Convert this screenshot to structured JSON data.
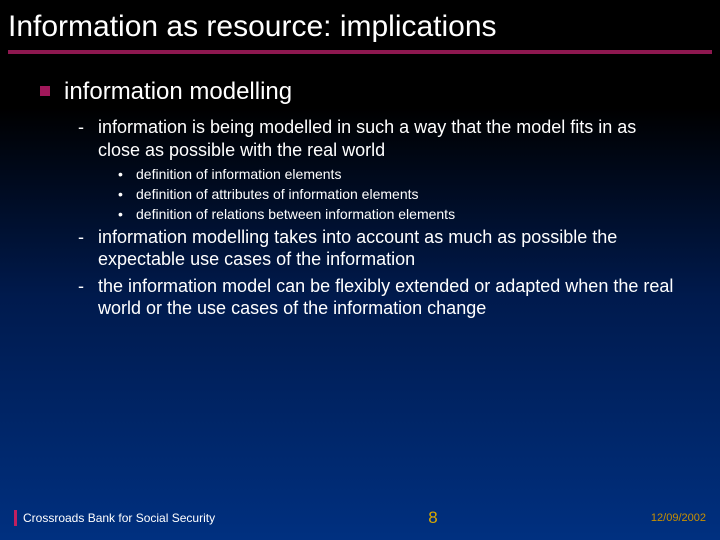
{
  "colors": {
    "accent": "#a0185a",
    "divider": "#8e1850",
    "pageNumber": "#d8a800",
    "date": "#c89000",
    "footerBar": "#c02060",
    "background_top": "#000000",
    "background_bottom": "#003080",
    "text": "#ffffff"
  },
  "title": "Information as resource: implications",
  "bullet1": "information modelling",
  "sub": {
    "a": "information is being modelled in such a way that the model fits in as close as possible with the real world",
    "b": "information modelling takes into account as much as possible the expectable use cases of the information",
    "c": "the information model can be flexibly extended or adapted when the real world or the use cases of the information change"
  },
  "detail": {
    "d1": "definition of information elements",
    "d2": "definition of attributes of information elements",
    "d3": "definition of relations between information elements"
  },
  "footer": {
    "org": "Crossroads Bank for Social Security",
    "page": "8",
    "date": "12/09/2002"
  }
}
